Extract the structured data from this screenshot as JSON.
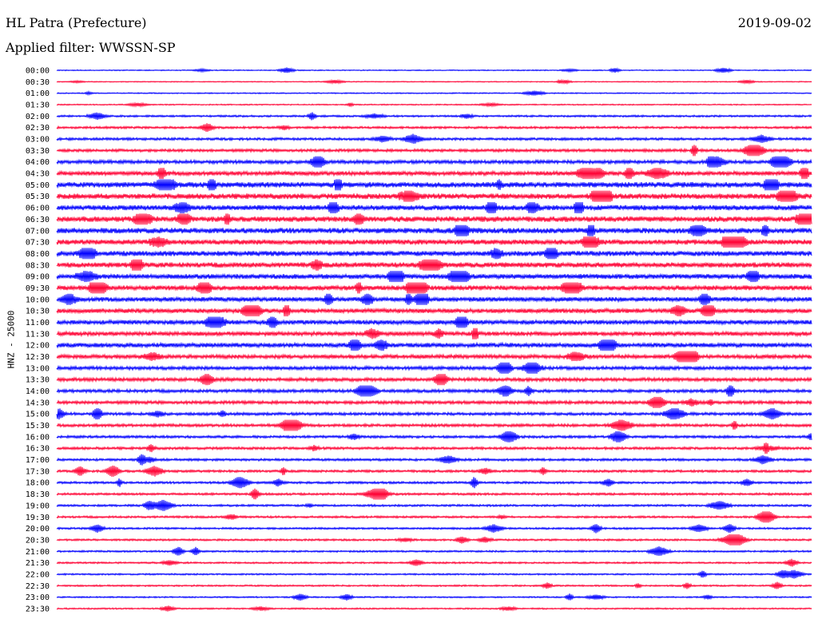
{
  "header": {
    "station": "HL Patra (Prefecture)",
    "date": "2019-09-02",
    "filter": "Applied filter: WWSSN-SP"
  },
  "colors": {
    "even": "#0000ff",
    "odd": "#ff0033",
    "background": "#ffffff"
  },
  "chart_data": {
    "type": "line",
    "title": "HL Patra (Prefecture)",
    "subtitle": "Applied filter: WWSSN-SP",
    "ylabel": "HNZ - 25000",
    "xlabel": "",
    "grid": false,
    "row_labels": [
      "00:00",
      "00:30",
      "01:00",
      "01:30",
      "02:00",
      "02:30",
      "03:00",
      "03:30",
      "04:00",
      "04:30",
      "05:00",
      "05:30",
      "06:00",
      "06:30",
      "07:00",
      "07:30",
      "08:00",
      "08:30",
      "09:00",
      "09:30",
      "10:00",
      "10:30",
      "11:00",
      "11:30",
      "12:00",
      "12:30",
      "13:00",
      "13:30",
      "14:00",
      "14:30",
      "15:00",
      "15:30",
      "16:00",
      "16:30",
      "17:00",
      "17:30",
      "18:00",
      "18:30",
      "19:00",
      "19:30",
      "20:00",
      "20:30",
      "21:00",
      "21:30",
      "22:00",
      "22:30",
      "23:00",
      "23:30"
    ],
    "series_colors": [
      "#0000ff",
      "#ff0033"
    ],
    "noise_level": [
      0.6,
      0.6,
      0.7,
      0.7,
      1.2,
      1.4,
      1.6,
      1.8,
      2.2,
      2.6,
      3.4,
      3.4,
      3.2,
      3.4,
      3.4,
      3.2,
      3.2,
      3.2,
      3.0,
      3.0,
      2.8,
      2.8,
      2.8,
      2.6,
      2.8,
      2.4,
      2.2,
      2.2,
      2.0,
      2.0,
      1.8,
      1.8,
      1.6,
      1.6,
      1.5,
      1.5,
      1.4,
      1.4,
      1.3,
      1.3,
      1.2,
      1.2,
      1.1,
      1.1,
      1.0,
      1.0,
      0.9,
      0.9
    ]
  }
}
